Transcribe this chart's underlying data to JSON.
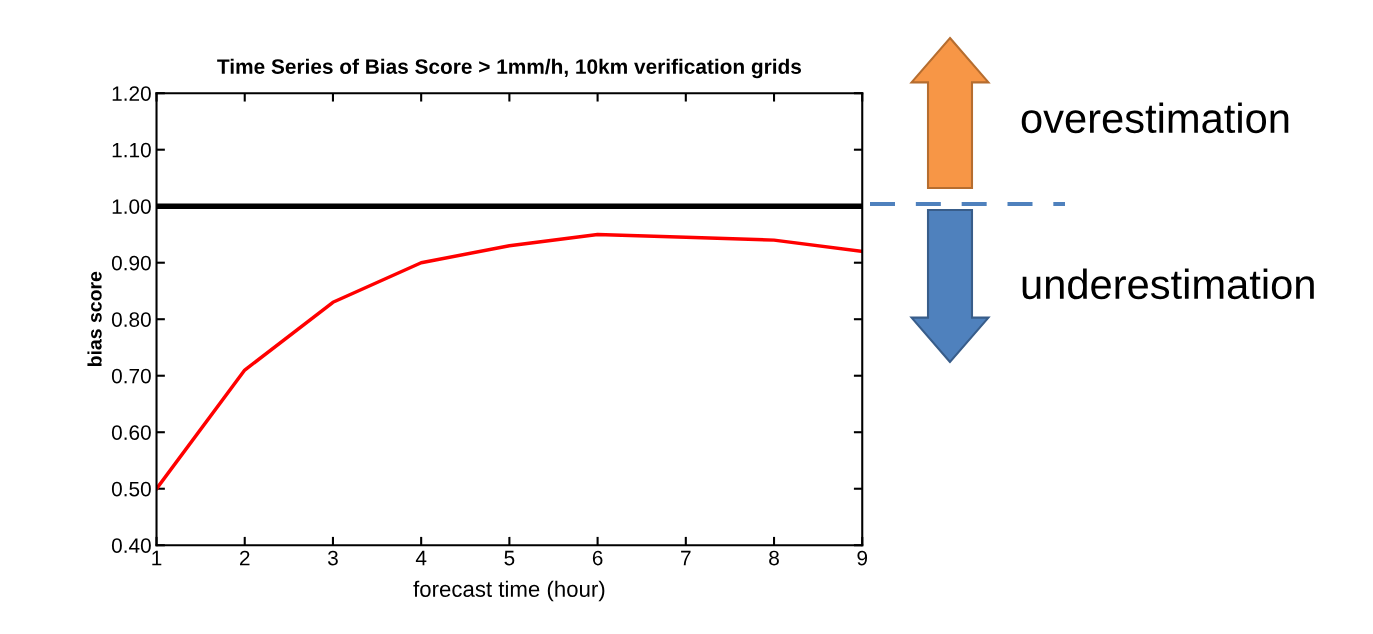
{
  "chart_data": {
    "type": "line",
    "title": "Time Series of Bias Score > 1mm/h, 10km verification grids",
    "xlabel": "forecast time (hour)",
    "ylabel": "bias score",
    "x": [
      1,
      2,
      3,
      4,
      5,
      6,
      7,
      8,
      9
    ],
    "series": [
      {
        "color": "#ff0000",
        "values": [
          0.5,
          0.71,
          0.83,
          0.9,
          0.93,
          0.95,
          0.945,
          0.94,
          0.92
        ]
      }
    ],
    "xlim": [
      1,
      9
    ],
    "xticks": [
      1,
      2,
      3,
      4,
      5,
      6,
      7,
      8,
      9
    ],
    "ylim": [
      0.4,
      1.2
    ],
    "yticks": [
      {
        "value": 0.4,
        "label": "0.40"
      },
      {
        "value": 0.5,
        "label": "0.50"
      },
      {
        "value": 0.6,
        "label": "0.60"
      },
      {
        "value": 0.7,
        "label": "0.70"
      },
      {
        "value": 0.8,
        "label": "0.80"
      },
      {
        "value": 0.9,
        "label": "0.90"
      },
      {
        "value": 1.0,
        "label": "1.00"
      },
      {
        "value": 1.1,
        "label": "1.10"
      },
      {
        "value": 1.2,
        "label": "1.20"
      }
    ],
    "ref_lines": [
      {
        "axis": "y",
        "value": 1.0,
        "color": "#000000",
        "line_style": "solid"
      }
    ],
    "annotations": [
      "overestimation",
      "underestimation"
    ],
    "grid": false,
    "legend": false,
    "marker": "none",
    "line_style": "solid"
  }
}
